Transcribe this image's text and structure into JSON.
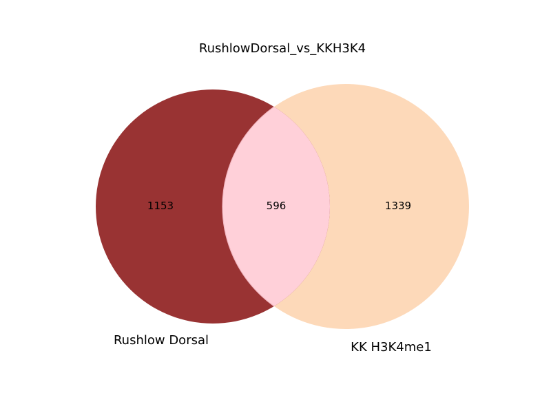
{
  "title": "RushlowDorsal_vs_KKH3K4",
  "sets": [
    {
      "name": "Rushlow Dorsal",
      "only_count": "1153",
      "color": "#993333"
    },
    {
      "name": "KK H3K4me1",
      "only_count": "1339",
      "color": "#fdd9b9"
    }
  ],
  "intersection": {
    "count": "596",
    "color": "#ffd0d9",
    "stroke": "#f2b8c2"
  }
}
